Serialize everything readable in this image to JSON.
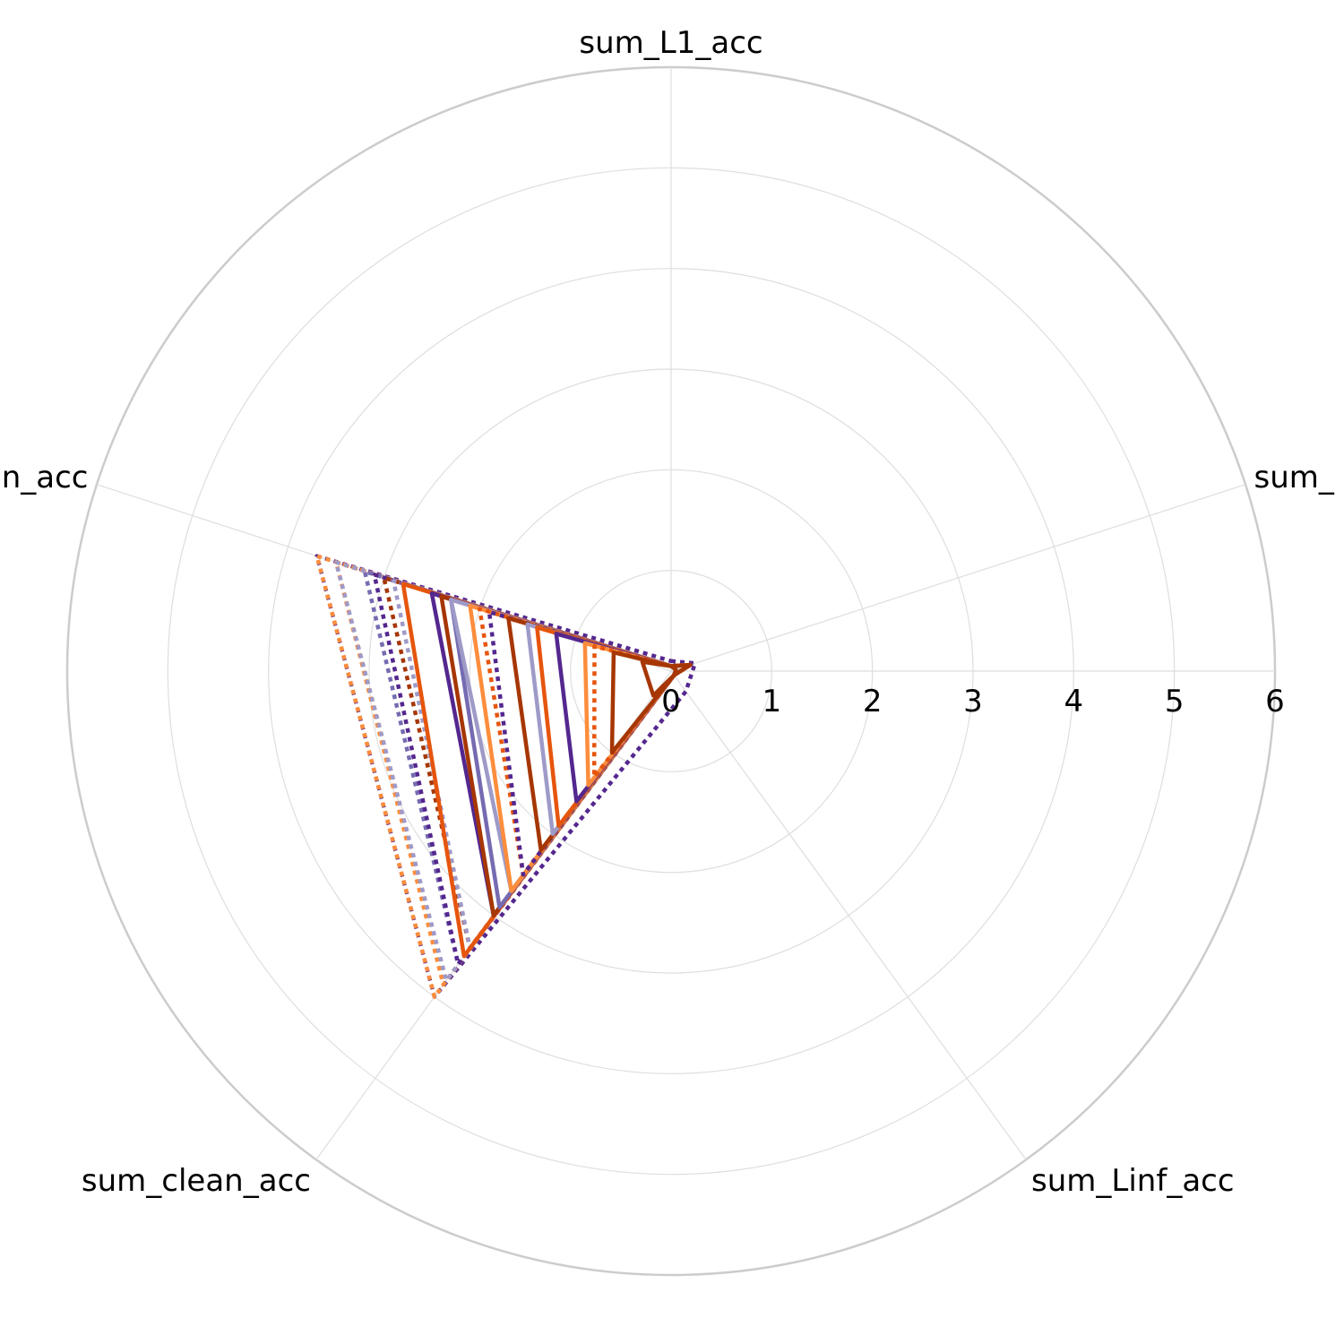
{
  "chart_data": {
    "type": "radar",
    "axes": [
      "sum_L1_acc",
      "sum_",
      "sum_Linf_acc",
      "sum_clean_acc",
      "n_acc"
    ],
    "radial_range": [
      0,
      6
    ],
    "radial_ticks": [
      "0",
      "1",
      "2",
      "3",
      "4",
      "5",
      "6"
    ],
    "grid": true,
    "series": [
      {
        "values": [
          0.1,
          0.25,
          0.25,
          4.0,
          3.7
        ],
        "color": "#54278f",
        "dash": "dot"
      },
      {
        "values": [
          0.05,
          0.2,
          0.05,
          4.0,
          3.7
        ],
        "color": "#fd8d3c",
        "dash": "dot"
      },
      {
        "values": [
          0.05,
          0.2,
          0.05,
          3.85,
          3.5
        ],
        "color": "#fd8d3c",
        "dash": "dot"
      },
      {
        "values": [
          0.05,
          0.2,
          0.05,
          3.8,
          3.5
        ],
        "color": "#9e9ac8",
        "dash": "dot"
      },
      {
        "values": [
          0.05,
          0.2,
          0.05,
          3.6,
          3.2
        ],
        "color": "#756bb1",
        "dash": "dot"
      },
      {
        "values": [
          0.05,
          0.2,
          0.05,
          3.6,
          3.1
        ],
        "color": "#54278f",
        "dash": "dot"
      },
      {
        "values": [
          0.05,
          0.2,
          0.05,
          3.4,
          3.0
        ],
        "color": "#a63603",
        "dash": "dot"
      },
      {
        "values": [
          0.05,
          0.2,
          0.05,
          3.4,
          2.9
        ],
        "color": "#9e9ac8",
        "dash": "dot"
      },
      {
        "values": [
          0.05,
          0.2,
          0.05,
          3.5,
          2.8
        ],
        "color": "#e6550d",
        "dash": "solid"
      },
      {
        "values": [
          0.05,
          0.2,
          0.05,
          3.0,
          2.5
        ],
        "color": "#54278f",
        "dash": "solid"
      },
      {
        "values": [
          0.05,
          0.2,
          0.05,
          3.0,
          2.4
        ],
        "color": "#a63603",
        "dash": "solid"
      },
      {
        "values": [
          0.05,
          0.2,
          0.05,
          2.9,
          2.3
        ],
        "color": "#756bb1",
        "dash": "solid"
      },
      {
        "values": [
          0.05,
          0.2,
          0.05,
          2.7,
          2.3
        ],
        "color": "#9e9ac8",
        "dash": "solid"
      },
      {
        "values": [
          0.05,
          0.2,
          0.05,
          2.7,
          2.1
        ],
        "color": "#fd8d3c",
        "dash": "solid"
      },
      {
        "values": [
          0.05,
          0.2,
          0.05,
          2.5,
          2.0
        ],
        "color": "#e6550d",
        "dash": "dot"
      },
      {
        "values": [
          0.05,
          0.2,
          0.05,
          2.5,
          1.9
        ],
        "color": "#54278f",
        "dash": "dot"
      },
      {
        "values": [
          0.05,
          0.2,
          0.05,
          2.2,
          1.7
        ],
        "color": "#a63603",
        "dash": "solid"
      },
      {
        "values": [
          0.05,
          0.2,
          0.05,
          2.0,
          1.5
        ],
        "color": "#9e9ac8",
        "dash": "solid"
      },
      {
        "values": [
          0.05,
          0.2,
          0.05,
          1.9,
          1.4
        ],
        "color": "#e6550d",
        "dash": "solid"
      },
      {
        "values": [
          0.05,
          0.2,
          0.05,
          1.6,
          1.2
        ],
        "color": "#54278f",
        "dash": "solid"
      },
      {
        "values": [
          0.05,
          0.2,
          0.05,
          1.4,
          0.9
        ],
        "color": "#fd8d3c",
        "dash": "solid"
      },
      {
        "values": [
          0.05,
          0.2,
          0.05,
          1.3,
          0.8
        ],
        "color": "#e6550d",
        "dash": "dot"
      },
      {
        "values": [
          0.05,
          0.2,
          0.05,
          1.0,
          0.6
        ],
        "color": "#a63603",
        "dash": "solid"
      },
      {
        "values": [
          0.05,
          0.05,
          0.05,
          0.3,
          0.3
        ],
        "color": "#a63603",
        "dash": "solid"
      }
    ]
  }
}
